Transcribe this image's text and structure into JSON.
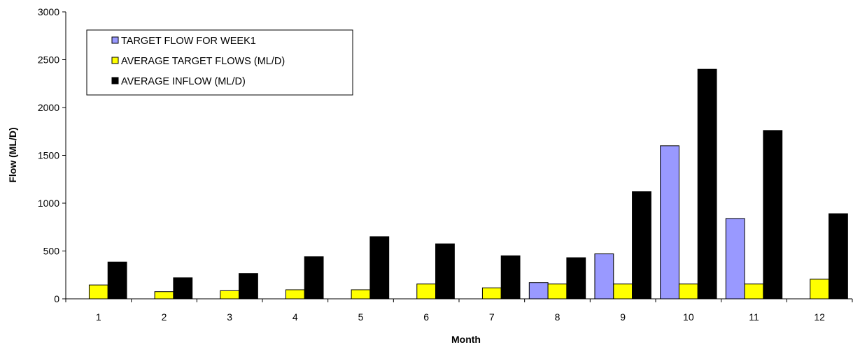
{
  "chart_data": {
    "type": "bar",
    "categories": [
      "1",
      "2",
      "3",
      "4",
      "5",
      "6",
      "7",
      "8",
      "9",
      "10",
      "11",
      "12"
    ],
    "series": [
      {
        "name": "TARGET FLOW FOR WEEK1",
        "color": "#9999ff",
        "values": [
          0,
          0,
          0,
          0,
          0,
          0,
          0,
          170,
          470,
          1600,
          840,
          0
        ]
      },
      {
        "name": "AVERAGE TARGET FLOWS (ML/D)",
        "color": "#ffff00",
        "values": [
          145,
          75,
          85,
          95,
          95,
          155,
          115,
          155,
          155,
          155,
          155,
          205
        ]
      },
      {
        "name": "AVERAGE INFLOW (ML/D)",
        "color": "#000000",
        "values": [
          385,
          220,
          265,
          440,
          650,
          575,
          450,
          430,
          1120,
          2400,
          1760,
          890
        ]
      }
    ],
    "xlabel": "Month",
    "ylabel": "Flow (ML/D)",
    "ylim": [
      0,
      3000
    ],
    "yticks": [
      0,
      500,
      1000,
      1500,
      2000,
      2500,
      3000
    ],
    "legend": "top-left",
    "grid": false
  }
}
